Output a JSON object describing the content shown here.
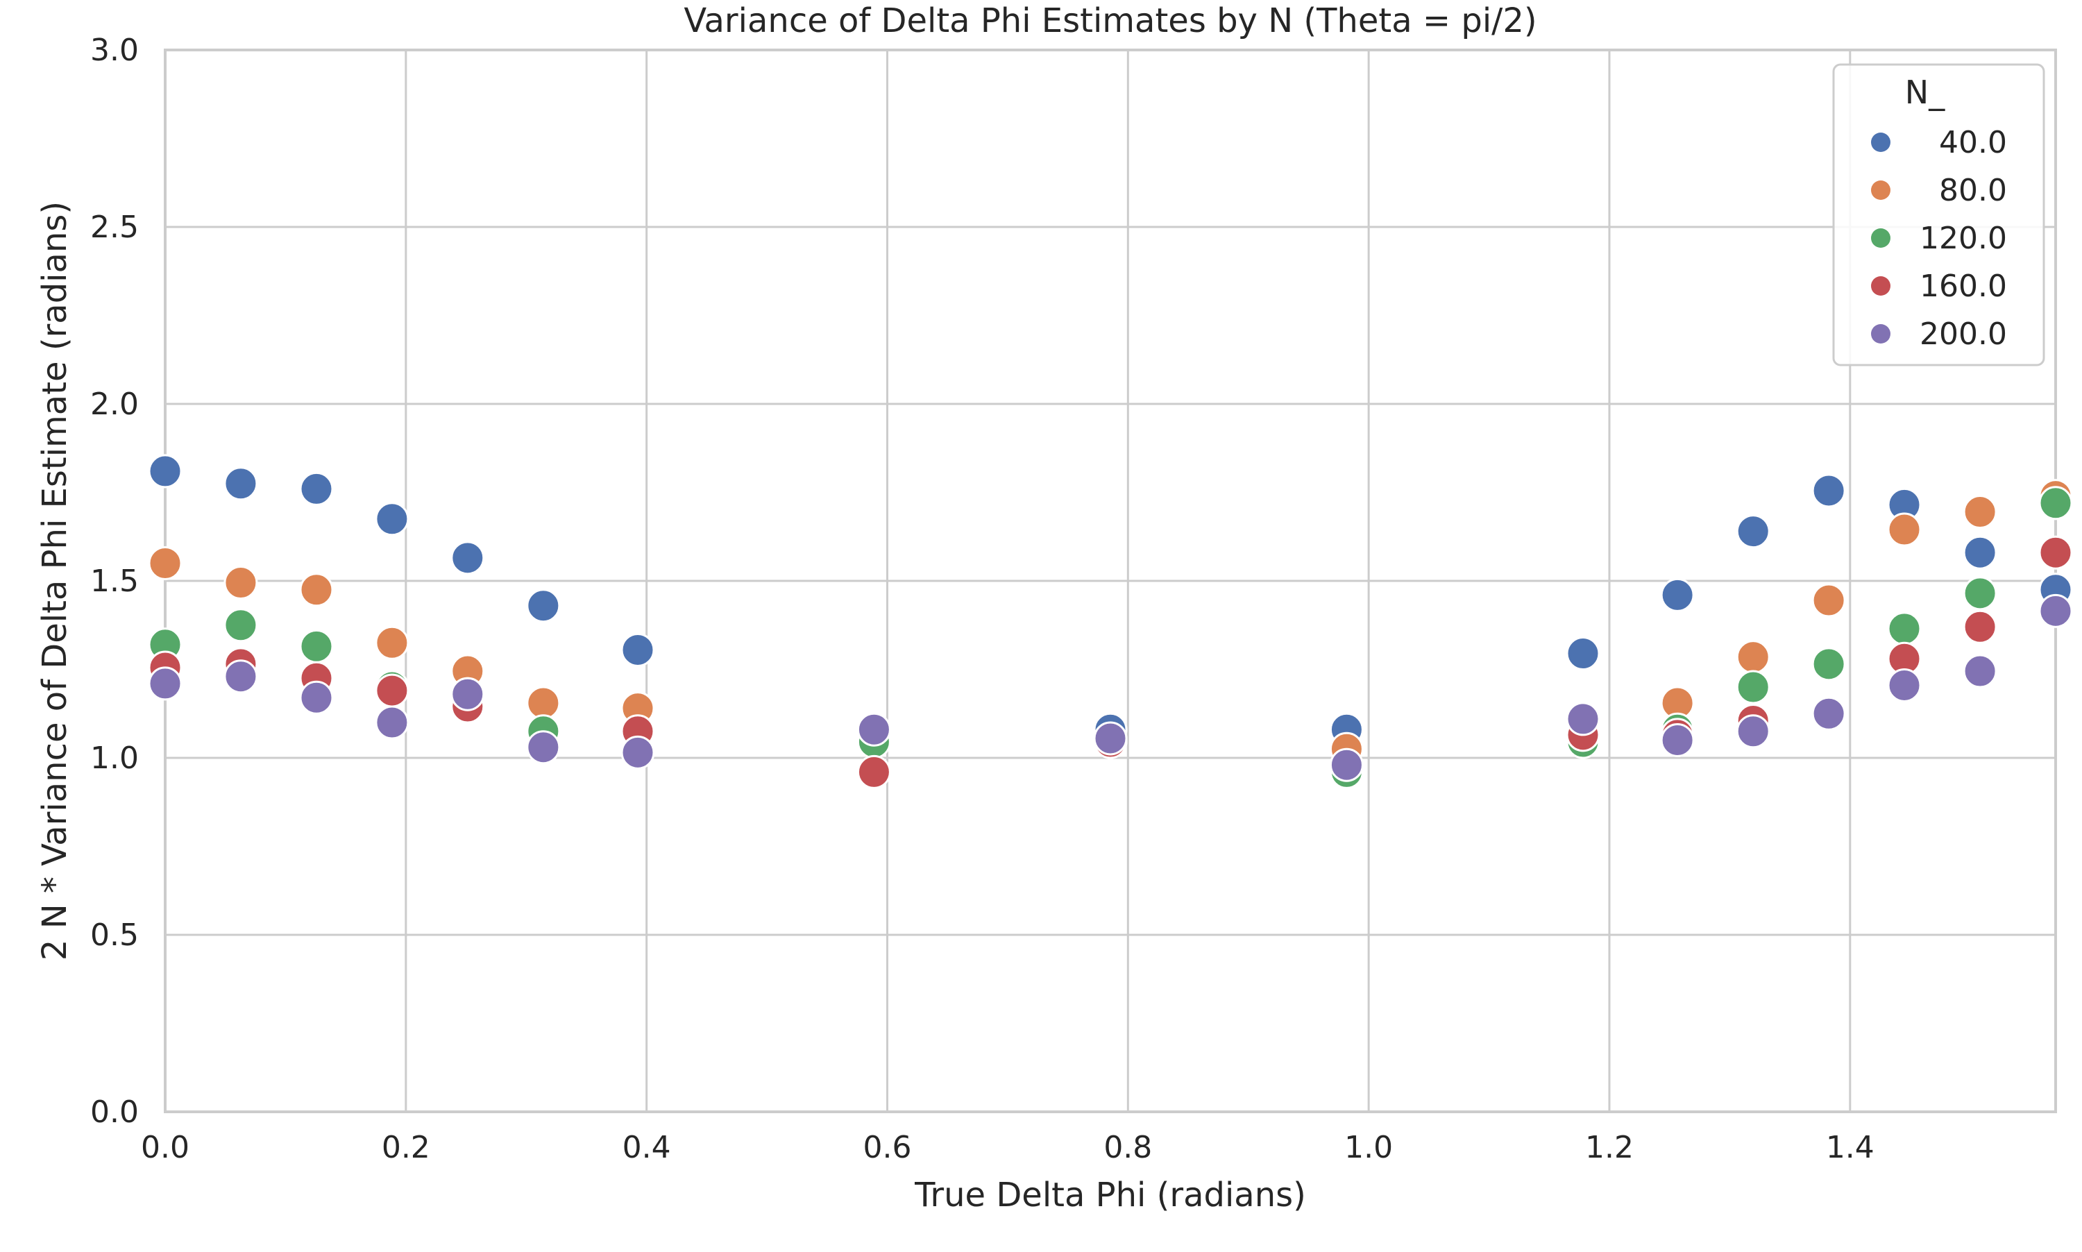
{
  "chart_data": {
    "type": "scatter",
    "title": "Variance of Delta Phi Estimates by N (Theta = pi/2)",
    "xlabel": "True Delta Phi (radians)",
    "ylabel": "2 N * Variance of Delta Phi Estimate (radians)",
    "xlim": [
      0,
      1.5708
    ],
    "ylim": [
      0,
      3.0
    ],
    "x_ticks": [
      "0.0",
      "0.2",
      "0.4",
      "0.6",
      "0.8",
      "1.0",
      "1.2",
      "1.4"
    ],
    "y_ticks": [
      "0.0",
      "0.5",
      "1.0",
      "1.5",
      "2.0",
      "2.5",
      "3.0"
    ],
    "grid": true,
    "legend": {
      "title": "N_",
      "placement": "top-right"
    },
    "x": [
      0.0,
      0.0628,
      0.1257,
      0.1885,
      0.2513,
      0.3142,
      0.3927,
      0.589,
      0.7854,
      0.9817,
      1.1781,
      1.2566,
      1.3195,
      1.3823,
      1.4451,
      1.508,
      1.5708
    ],
    "series": [
      {
        "name": "40.0",
        "color": "#4c72b0",
        "values": [
          1.81,
          1.775,
          1.76,
          1.675,
          1.565,
          1.43,
          1.305,
          null,
          1.08,
          1.08,
          1.295,
          1.46,
          1.64,
          1.755,
          1.715,
          1.58,
          1.475
        ]
      },
      {
        "name": "80.0",
        "color": "#dd8452",
        "values": [
          1.55,
          1.495,
          1.475,
          1.325,
          1.245,
          1.155,
          1.14,
          null,
          null,
          1.025,
          null,
          1.155,
          1.285,
          1.445,
          1.645,
          1.695,
          1.74
        ]
      },
      {
        "name": "120.0",
        "color": "#55a868",
        "values": [
          1.32,
          1.375,
          1.315,
          1.2,
          1.18,
          1.075,
          null,
          1.045,
          null,
          0.96,
          1.045,
          1.08,
          1.2,
          1.265,
          1.365,
          1.465,
          1.72
        ]
      },
      {
        "name": "160.0",
        "color": "#c44e52",
        "values": [
          1.255,
          1.265,
          1.225,
          1.19,
          1.145,
          null,
          1.075,
          0.96,
          1.045,
          null,
          1.065,
          1.065,
          1.105,
          null,
          1.28,
          1.37,
          1.58
        ]
      },
      {
        "name": "200.0",
        "color": "#8172b3",
        "values": [
          1.21,
          1.23,
          1.17,
          1.1,
          1.18,
          1.03,
          1.015,
          1.08,
          1.055,
          0.98,
          1.11,
          1.05,
          1.075,
          1.125,
          1.205,
          1.245,
          1.415
        ]
      }
    ]
  }
}
